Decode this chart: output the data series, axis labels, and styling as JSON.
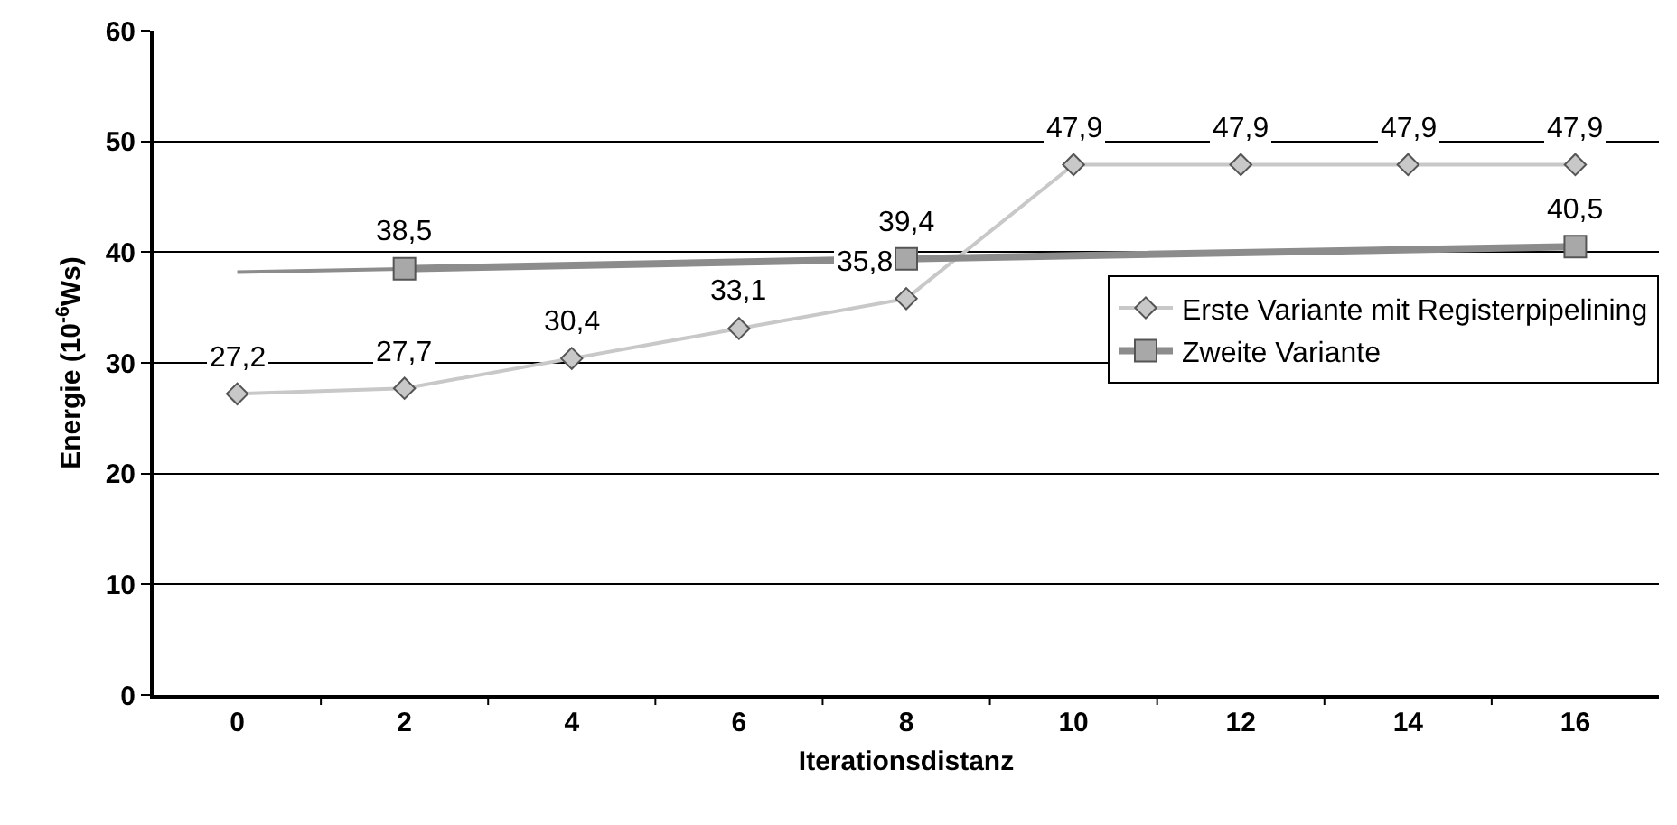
{
  "chart_data": {
    "type": "line",
    "xlabel": "Iterationsdistanz",
    "ylabel": "Energie (10$^{-6}$Ws)",
    "categories": [
      "0",
      "2",
      "4",
      "6",
      "8",
      "10",
      "12",
      "14",
      "16"
    ],
    "ylim": [
      0,
      60
    ],
    "yticks": [
      0,
      10,
      20,
      30,
      40,
      50,
      60
    ],
    "grid": "y",
    "legend": "right",
    "series": [
      {
        "color": "#8c8c8c",
        "values": [
          38.2,
          null,
          null,
          null,
          null,
          null,
          null,
          null,
          40.5
        ]
      },
      {
        "name": "Erste Variante mit Registerpipelining",
        "color": "#c8c8c8",
        "marker": "diamond",
        "values": [
          27.2,
          27.7,
          30.4,
          33.1,
          35.8,
          47.9,
          47.9,
          47.9,
          47.9
        ],
        "value_labels": [
          "27,2",
          "27,7",
          "30,4",
          "33,1",
          "35,8",
          "47,9",
          "47,9",
          "47,9",
          "47,9"
        ]
      },
      {
        "name": "Zweite Variante",
        "color": "#8c8c8c",
        "marker": "square",
        "values": [
          null,
          38.5,
          null,
          null,
          39.4,
          null,
          null,
          null,
          40.5
        ],
        "value_labels": [
          null,
          "38,5",
          null,
          null,
          "39,4",
          null,
          null,
          null,
          "40,5"
        ]
      }
    ]
  }
}
